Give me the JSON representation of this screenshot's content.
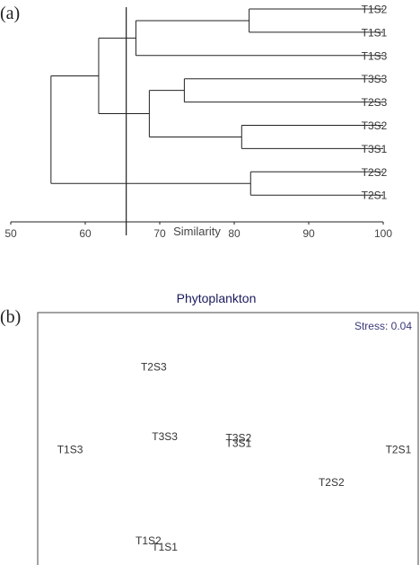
{
  "panel_labels": {
    "a": "(a)",
    "b": "(b)"
  },
  "colors": {
    "line": "#222222",
    "text": "#333333",
    "title": "#1a1a5e",
    "stress": "#3a3a7a"
  },
  "chart_data": [
    {
      "type": "dendrogram",
      "xlabel": "Similarity",
      "xlim": [
        50,
        100
      ],
      "xticks": [
        50,
        60,
        70,
        80,
        90,
        100
      ],
      "cutoff": 65.5,
      "leaves": [
        "T1S2",
        "T1S1",
        "T1S3",
        "T3S3",
        "T2S3",
        "T3S2",
        "T3S1",
        "T2S2",
        "T2S1"
      ],
      "merges": [
        {
          "id": "A",
          "left": "T1S2",
          "right": "T1S1",
          "similarity": 82.0
        },
        {
          "id": "B",
          "left": "A",
          "right": "T1S3",
          "similarity": 66.8
        },
        {
          "id": "C",
          "left": "T3S3",
          "right": "T2S3",
          "similarity": 73.3
        },
        {
          "id": "D",
          "left": "T3S2",
          "right": "T3S1",
          "similarity": 81.0
        },
        {
          "id": "E",
          "left": "C",
          "right": "D",
          "similarity": 68.6
        },
        {
          "id": "F",
          "left": "B",
          "right": "E",
          "similarity": 61.8
        },
        {
          "id": "G",
          "left": "T2S2",
          "right": "T2S1",
          "similarity": 82.2
        },
        {
          "id": "H",
          "left": "F",
          "right": "G",
          "similarity": 55.4
        }
      ]
    },
    {
      "type": "scatter",
      "title": "Phytoplankton",
      "annotation": "Stress: 0.04",
      "xlim": [
        0,
        100
      ],
      "ylim": [
        0,
        100
      ],
      "points": [
        {
          "label": "T2S3",
          "x": 30.5,
          "y": 78.6
        },
        {
          "label": "T3S3",
          "x": 33.4,
          "y": 51.1
        },
        {
          "label": "T3S2",
          "x": 52.8,
          "y": 50.5
        },
        {
          "label": "T3S1",
          "x": 52.8,
          "y": 48.4
        },
        {
          "label": "T1S3",
          "x": 8.5,
          "y": 45.9
        },
        {
          "label": "T2S1",
          "x": 94.8,
          "y": 45.9
        },
        {
          "label": "T2S2",
          "x": 77.2,
          "y": 33.0
        },
        {
          "label": "T1S2",
          "x": 29.1,
          "y": 9.7
        },
        {
          "label": "T1S1",
          "x": 33.4,
          "y": 7.3
        }
      ]
    }
  ]
}
